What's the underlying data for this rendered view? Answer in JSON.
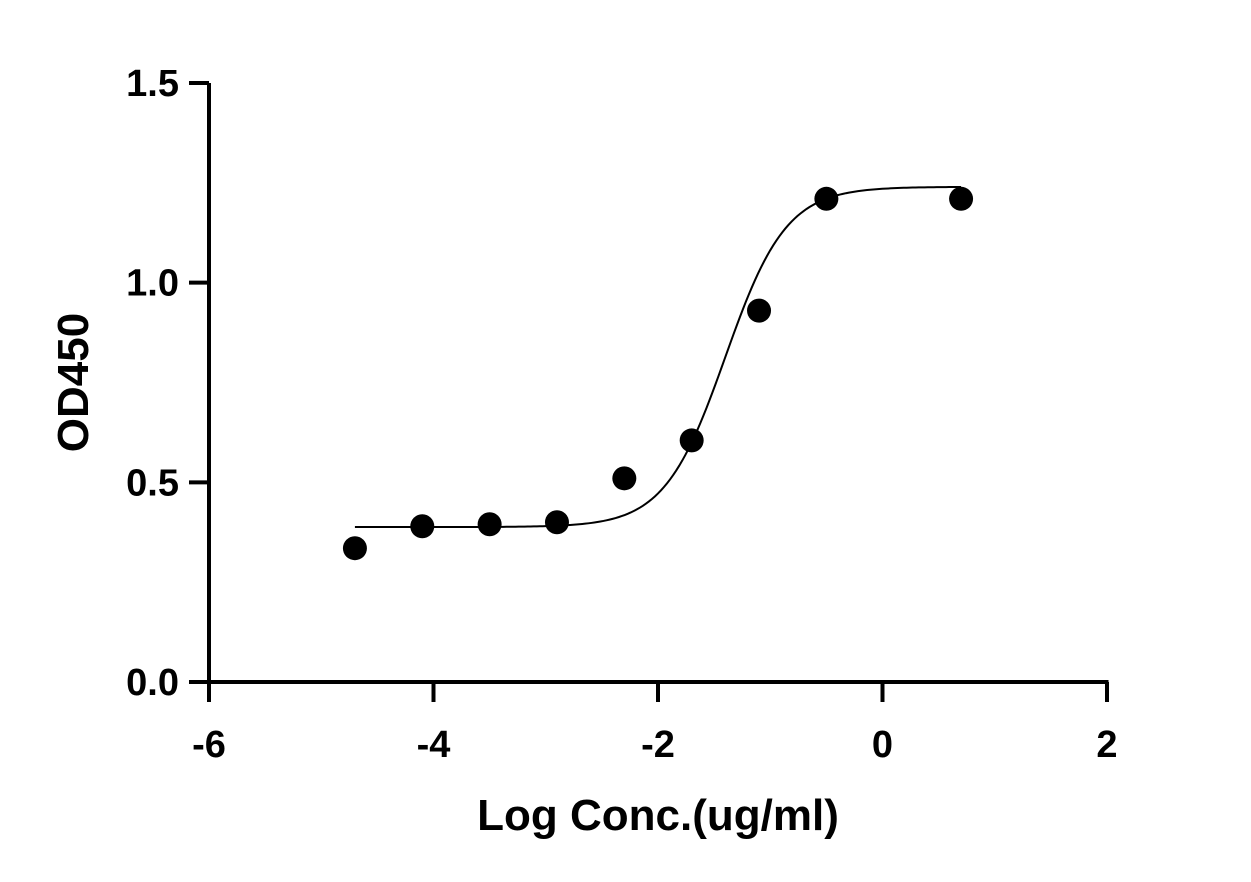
{
  "chart_data": {
    "type": "scatter",
    "title": "",
    "xlabel": "Log Conc.(ug/ml)",
    "ylabel": "OD450",
    "xlim": [
      -6,
      2
    ],
    "ylim": [
      0,
      1.5
    ],
    "x_ticks": [
      -6,
      -4,
      -2,
      0,
      2
    ],
    "x_tick_labels": [
      "-6",
      "-4",
      "-2",
      "0",
      "2"
    ],
    "y_ticks": [
      0,
      0.5,
      1.0,
      1.5
    ],
    "y_tick_labels": [
      "0.0",
      "0.5",
      "1.0",
      "1.5"
    ],
    "grid": false,
    "legend": "none",
    "series": [
      {
        "points": [
          {
            "x": -4.7,
            "y": 0.335
          },
          {
            "x": -4.1,
            "y": 0.39
          },
          {
            "x": -3.5,
            "y": 0.395
          },
          {
            "x": -2.9,
            "y": 0.4
          },
          {
            "x": -2.3,
            "y": 0.51
          },
          {
            "x": -1.7,
            "y": 0.605
          },
          {
            "x": -1.1,
            "y": 0.93
          },
          {
            "x": -0.5,
            "y": 1.21
          },
          {
            "x": 0.7,
            "y": 1.21
          }
        ],
        "marker_color": "#000000"
      }
    ],
    "fit_curve": {
      "model": "4PL",
      "bottom": 0.388,
      "top": 1.24,
      "log_ec50": -1.4,
      "hill_slope": 1.6,
      "x_range": [
        -4.7,
        0.7
      ],
      "color": "#000000"
    }
  }
}
